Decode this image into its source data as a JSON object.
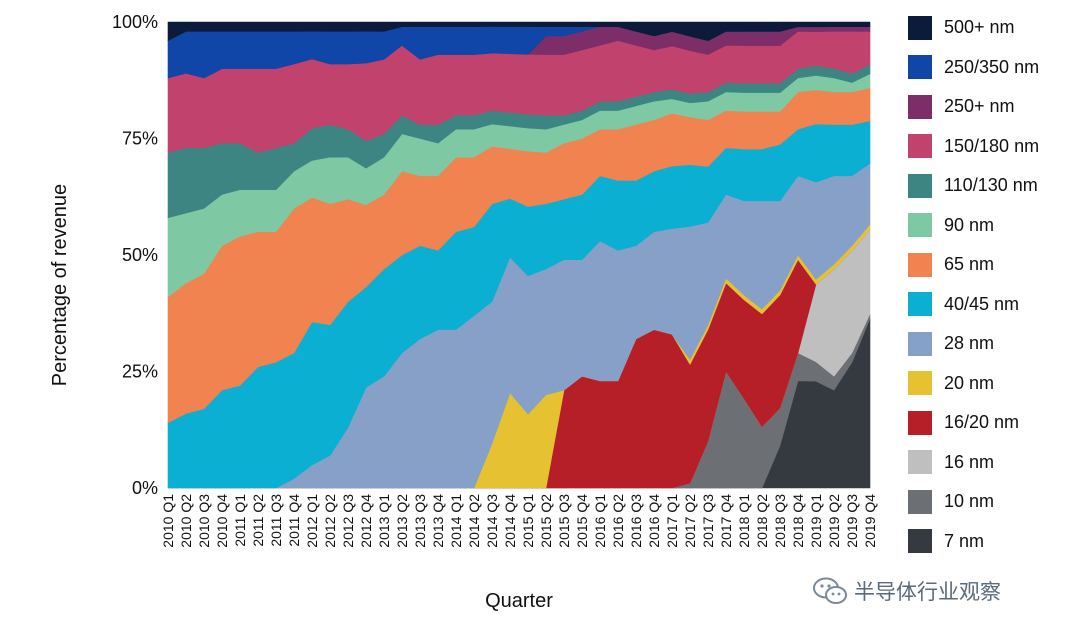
{
  "chart_data": {
    "type": "area",
    "stacked": true,
    "normalized": true,
    "title": "",
    "xlabel": "Quarter",
    "ylabel": "Percentage of revenue",
    "ylim": [
      0,
      100
    ],
    "y_ticks": [
      "0%",
      "25%",
      "50%",
      "75%",
      "100%"
    ],
    "y_tick_values": [
      0,
      25,
      50,
      75,
      100
    ],
    "grid": false,
    "legend_position": "right",
    "categories": [
      "2010 Q1",
      "2010 Q2",
      "2010 Q3",
      "2010 Q4",
      "2011 Q1",
      "2011 Q2",
      "2011 Q3",
      "2011 Q4",
      "2012 Q1",
      "2012 Q2",
      "2012 Q3",
      "2012 Q4",
      "2013 Q1",
      "2013 Q2",
      "2013 Q3",
      "2013 Q4",
      "2014 Q1",
      "2014 Q2",
      "2014 Q3",
      "2014 Q4",
      "2015 Q1",
      "2015 Q2",
      "2015 Q3",
      "2015 Q4",
      "2016 Q1",
      "2016 Q2",
      "2016 Q3",
      "2016 Q4",
      "2017 Q1",
      "2017 Q2",
      "2017 Q3",
      "2017 Q4",
      "2018 Q1",
      "2018 Q2",
      "2018 Q3",
      "2018 Q4",
      "2019 Q1",
      "2019 Q2",
      "2019 Q3",
      "2019 Q4"
    ],
    "series": [
      {
        "name": "7 nm",
        "color": "#343a40",
        "values": [
          0,
          0,
          0,
          0,
          0,
          0,
          0,
          0,
          0,
          0,
          0,
          0,
          0,
          0,
          0,
          0,
          0,
          0,
          0,
          0,
          0,
          0,
          0,
          0,
          0,
          0,
          0,
          0,
          0,
          0,
          0,
          0,
          0,
          0,
          9,
          23,
          22,
          21,
          27,
          36
        ]
      },
      {
        "name": "10 nm",
        "color": "#6c7075",
        "values": [
          0,
          0,
          0,
          0,
          0,
          0,
          0,
          0,
          0,
          0,
          0,
          0,
          0,
          0,
          0,
          0,
          0,
          0,
          0,
          0,
          0,
          0,
          0,
          0,
          0,
          0,
          0,
          0,
          0,
          1,
          10,
          25,
          19,
          13,
          8,
          6,
          4,
          3,
          2,
          1
        ]
      },
      {
        "name": "16 nm",
        "color": "#bfbfbf",
        "values": [
          0,
          0,
          0,
          0,
          0,
          0,
          0,
          0,
          0,
          0,
          0,
          0,
          0,
          0,
          0,
          0,
          0,
          0,
          0,
          0,
          0,
          0,
          0,
          0,
          0,
          0,
          0,
          0,
          0,
          0,
          0,
          0,
          0,
          0,
          0,
          0,
          16,
          23,
          22,
          18
        ]
      },
      {
        "name": "16/20 nm",
        "color": "#b71f28",
        "values": [
          0,
          0,
          0,
          0,
          0,
          0,
          0,
          0,
          0,
          0,
          0,
          0,
          0,
          0,
          0,
          0,
          0,
          0,
          0,
          0,
          0,
          0,
          21,
          24,
          23,
          23,
          32,
          34,
          32,
          25,
          24,
          19,
          21,
          24,
          24,
          20,
          0,
          0,
          0,
          0
        ]
      },
      {
        "name": "20 nm",
        "color": "#e6c232",
        "values": [
          0,
          0,
          0,
          0,
          0,
          0,
          0,
          0,
          0,
          0,
          0,
          0,
          0,
          0,
          0,
          0,
          0,
          0,
          10,
          21,
          16,
          20,
          0,
          0,
          0,
          0,
          0,
          0,
          0,
          1,
          1,
          1,
          1,
          1,
          1,
          1,
          1,
          1,
          1,
          1
        ]
      },
      {
        "name": "28 nm",
        "color": "#86a0c8",
        "values": [
          0,
          0,
          0,
          0,
          0,
          0,
          0,
          2,
          5,
          7,
          13,
          22,
          24,
          29,
          32,
          34,
          34,
          37,
          32,
          30,
          30,
          27,
          28,
          25,
          30,
          28,
          20,
          21,
          22,
          28,
          22,
          18,
          20,
          23,
          19,
          17,
          20,
          19,
          15,
          13
        ]
      },
      {
        "name": "40/45 nm",
        "color": "#0aafd2",
        "values": [
          14,
          16,
          17,
          21,
          22,
          26,
          27,
          27,
          31,
          28,
          27,
          22,
          23,
          21,
          20,
          17,
          21,
          19,
          22,
          13,
          15,
          14,
          13,
          14,
          14,
          15,
          14,
          13,
          13,
          13,
          12,
          10,
          11,
          11,
          12,
          10,
          12,
          11,
          11,
          9
        ]
      },
      {
        "name": "65 nm",
        "color": "#f0834f",
        "values": [
          27,
          28,
          29,
          31,
          32,
          29,
          28,
          31,
          27,
          26,
          22,
          18,
          16,
          18,
          15,
          16,
          16,
          15,
          13,
          11,
          12,
          11,
          12,
          12,
          10,
          11,
          12,
          11,
          11,
          10,
          10,
          8,
          8,
          8,
          7,
          8,
          7,
          7,
          7,
          7
        ]
      },
      {
        "name": "90 nm",
        "color": "#7ec8a3",
        "values": [
          17,
          15,
          14,
          11,
          10,
          9,
          9,
          8,
          8,
          10,
          9,
          8,
          8,
          8,
          8,
          7,
          6,
          6,
          5,
          5,
          5,
          5,
          4,
          4,
          4,
          4,
          4,
          4,
          3,
          3,
          4,
          4,
          4,
          4,
          4,
          3,
          3,
          3,
          2,
          3
        ]
      },
      {
        "name": "110/130 nm",
        "color": "#3d8582",
        "values": [
          14,
          14,
          13,
          11,
          10,
          8,
          9,
          6,
          7,
          7,
          6,
          6,
          5,
          4,
          3,
          4,
          3,
          3,
          3,
          3,
          3,
          3,
          2,
          2,
          2,
          2,
          2,
          2,
          2,
          2,
          2,
          2,
          2,
          2,
          2,
          2,
          2,
          2,
          2,
          2
        ]
      },
      {
        "name": "150/180 nm",
        "color": "#c1426d",
        "values": [
          16,
          16,
          15,
          16,
          16,
          18,
          17,
          17,
          15,
          13,
          14,
          17,
          16,
          15,
          14,
          15,
          13,
          13,
          13,
          13,
          13,
          13,
          13,
          13,
          12,
          13,
          11,
          9,
          9,
          9,
          8,
          8,
          8,
          8,
          8,
          8,
          7,
          8,
          9,
          7
        ]
      },
      {
        "name": "250+ nm",
        "color": "#7d2d68",
        "values": [
          0,
          0,
          0,
          0,
          0,
          0,
          0,
          0,
          0,
          0,
          0,
          0,
          0,
          0,
          0,
          0,
          0,
          0,
          0,
          0,
          0,
          4,
          4,
          4,
          4,
          3,
          3,
          3,
          3,
          3,
          3,
          3,
          3,
          3,
          3,
          1,
          1,
          1,
          1,
          1
        ]
      },
      {
        "name": "250/350 nm",
        "color": "#0f46a8",
        "values": [
          8,
          9,
          10,
          8,
          8,
          8,
          8,
          7,
          6,
          7,
          7,
          7,
          6,
          4,
          7,
          6,
          6,
          6,
          6,
          6,
          6,
          2,
          2,
          1,
          0,
          0,
          0,
          0,
          0,
          0,
          0,
          0,
          0,
          0,
          0,
          0,
          0,
          0,
          0,
          0
        ]
      },
      {
        "name": "500+ nm",
        "color": "#0c1b3a",
        "values": [
          4,
          2,
          2,
          2,
          2,
          2,
          2,
          2,
          2,
          2,
          2,
          2,
          2,
          1,
          1,
          1,
          1,
          1,
          1,
          1,
          1,
          1,
          1,
          1,
          1,
          1,
          2,
          3,
          2,
          3,
          4,
          2,
          2,
          2,
          2,
          1,
          1,
          1,
          1,
          1
        ]
      }
    ],
    "legend_order": [
      "500+ nm",
      "250/350 nm",
      "250+ nm",
      "150/180 nm",
      "110/130 nm",
      "90 nm",
      "65 nm",
      "40/45 nm",
      "28 nm",
      "20 nm",
      "16/20 nm",
      "16 nm",
      "10 nm",
      "7 nm"
    ]
  },
  "watermark": {
    "icon": "wechat-icon",
    "text": "半导体行业观察"
  }
}
